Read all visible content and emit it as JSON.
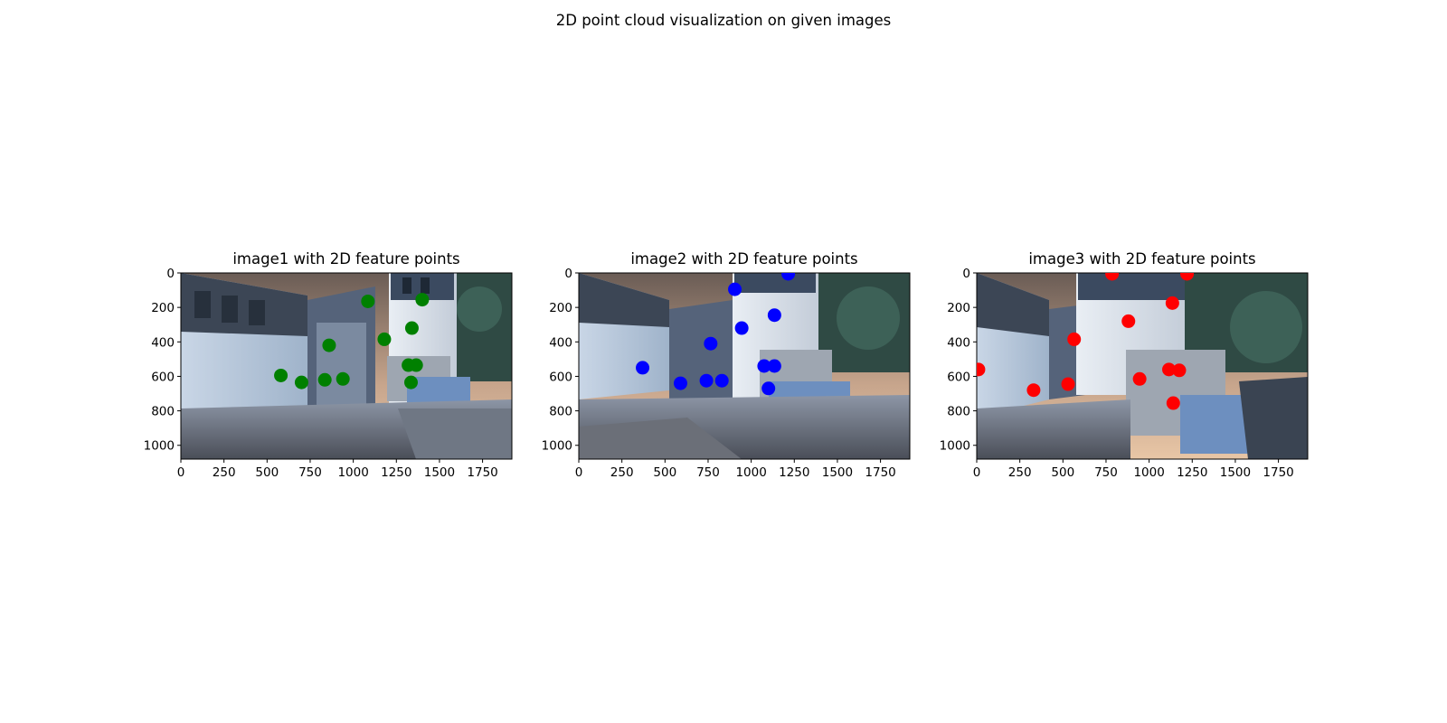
{
  "figure": {
    "suptitle": "2D point cloud visualization on given images"
  },
  "chart_data": [
    {
      "type": "scatter",
      "title": "image1 with 2D feature points",
      "xlabel": "",
      "ylabel": "",
      "xlim": [
        0,
        1920
      ],
      "ylim": [
        1080,
        0
      ],
      "y_inverted": true,
      "xticks": [
        "0",
        "250",
        "500",
        "750",
        "1000",
        "1250",
        "1500",
        "1750"
      ],
      "yticks": [
        "0",
        "200",
        "400",
        "600",
        "800",
        "1000"
      ],
      "grid": false,
      "legend": "none",
      "background_image": "game-street-scene-view-1",
      "marker_color": "#008000",
      "points": [
        {
          "x": 1085,
          "y": 165
        },
        {
          "x": 1400,
          "y": 155
        },
        {
          "x": 1340,
          "y": 320
        },
        {
          "x": 1180,
          "y": 385
        },
        {
          "x": 860,
          "y": 420
        },
        {
          "x": 1320,
          "y": 535
        },
        {
          "x": 1365,
          "y": 535
        },
        {
          "x": 580,
          "y": 595
        },
        {
          "x": 700,
          "y": 635
        },
        {
          "x": 835,
          "y": 620
        },
        {
          "x": 940,
          "y": 615
        },
        {
          "x": 1335,
          "y": 635
        }
      ]
    },
    {
      "type": "scatter",
      "title": "image2 with 2D feature points",
      "xlabel": "",
      "ylabel": "",
      "xlim": [
        0,
        1920
      ],
      "ylim": [
        1080,
        0
      ],
      "y_inverted": true,
      "xticks": [
        "0",
        "250",
        "500",
        "750",
        "1000",
        "1250",
        "1500",
        "1750"
      ],
      "yticks": [
        "0",
        "200",
        "400",
        "600",
        "800",
        "1000"
      ],
      "grid": false,
      "legend": "none",
      "background_image": "game-street-scene-view-2",
      "marker_color": "#0000ff",
      "points": [
        {
          "x": 1215,
          "y": 5
        },
        {
          "x": 905,
          "y": 95
        },
        {
          "x": 1135,
          "y": 245
        },
        {
          "x": 945,
          "y": 320
        },
        {
          "x": 765,
          "y": 410
        },
        {
          "x": 370,
          "y": 550
        },
        {
          "x": 1075,
          "y": 540
        },
        {
          "x": 1135,
          "y": 540
        },
        {
          "x": 590,
          "y": 640
        },
        {
          "x": 740,
          "y": 625
        },
        {
          "x": 830,
          "y": 625
        },
        {
          "x": 1100,
          "y": 670
        }
      ]
    },
    {
      "type": "scatter",
      "title": "image3 with 2D feature points",
      "xlabel": "",
      "ylabel": "",
      "xlim": [
        0,
        1920
      ],
      "ylim": [
        1080,
        0
      ],
      "y_inverted": true,
      "xticks": [
        "0",
        "250",
        "500",
        "750",
        "1000",
        "1250",
        "1500",
        "1750"
      ],
      "yticks": [
        "0",
        "200",
        "400",
        "600",
        "800",
        "1000"
      ],
      "grid": false,
      "legend": "none",
      "background_image": "game-street-scene-view-3",
      "marker_color": "#ff0000",
      "points": [
        {
          "x": 785,
          "y": 5
        },
        {
          "x": 1220,
          "y": 5
        },
        {
          "x": 1135,
          "y": 175
        },
        {
          "x": 880,
          "y": 280
        },
        {
          "x": 565,
          "y": 385
        },
        {
          "x": 10,
          "y": 560
        },
        {
          "x": 1115,
          "y": 560
        },
        {
          "x": 1175,
          "y": 565
        },
        {
          "x": 945,
          "y": 615
        },
        {
          "x": 530,
          "y": 645
        },
        {
          "x": 330,
          "y": 680
        },
        {
          "x": 1140,
          "y": 755
        }
      ]
    }
  ]
}
